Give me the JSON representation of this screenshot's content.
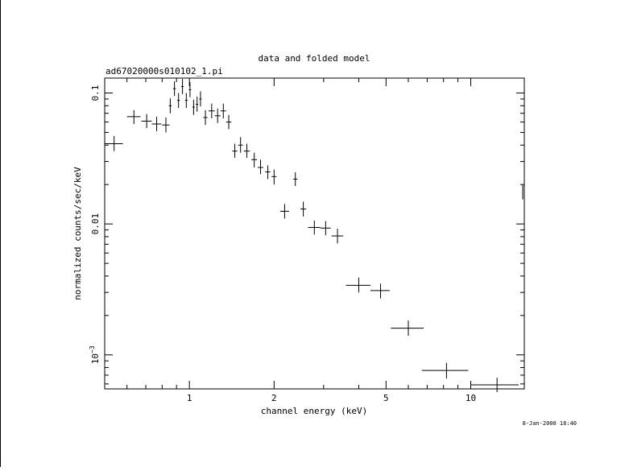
{
  "chart_data": {
    "type": "scatter",
    "title": "data and folded model",
    "subtitle": "ad67020000s010102_1.pi",
    "xlabel": "channel energy (keV)",
    "ylabel": "normalized counts/sec/keV",
    "xscale": "log",
    "yscale": "log",
    "xlim": [
      0.5,
      15.5
    ],
    "ylim": [
      0.00055,
      0.13
    ],
    "x_ticks": [
      {
        "value": 1,
        "label": "1"
      },
      {
        "value": 2,
        "label": "2"
      },
      {
        "value": 5,
        "label": "5"
      },
      {
        "value": 10,
        "label": "10"
      }
    ],
    "y_ticks": [
      {
        "value": 0.1,
        "label": "0.1"
      },
      {
        "value": 0.01,
        "label": "0.01"
      },
      {
        "value": 0.001,
        "label": "10",
        "sup": "−3"
      }
    ],
    "grid": false,
    "legend": "none",
    "timestamp": "8-Jan-2000 18:40",
    "series": [
      {
        "color": "#000000",
        "points": [
          {
            "x": 0.54,
            "xlo": 0.5,
            "xhi": 0.58,
            "y": 0.041,
            "ylo": 0.036,
            "yhi": 0.047
          },
          {
            "x": 0.635,
            "xlo": 0.6,
            "xhi": 0.67,
            "y": 0.066,
            "ylo": 0.058,
            "yhi": 0.074
          },
          {
            "x": 0.705,
            "xlo": 0.675,
            "xhi": 0.735,
            "y": 0.061,
            "ylo": 0.054,
            "yhi": 0.069
          },
          {
            "x": 0.765,
            "xlo": 0.735,
            "xhi": 0.795,
            "y": 0.058,
            "ylo": 0.051,
            "yhi": 0.066
          },
          {
            "x": 0.825,
            "xlo": 0.8,
            "xhi": 0.85,
            "y": 0.057,
            "ylo": 0.05,
            "yhi": 0.065
          },
          {
            "x": 0.855,
            "xlo": 0.845,
            "xhi": 0.865,
            "y": 0.08,
            "ylo": 0.07,
            "yhi": 0.091
          },
          {
            "x": 0.885,
            "xlo": 0.875,
            "xhi": 0.895,
            "y": 0.108,
            "ylo": 0.095,
            "yhi": 0.123
          },
          {
            "x": 0.915,
            "xlo": 0.905,
            "xhi": 0.925,
            "y": 0.088,
            "ylo": 0.077,
            "yhi": 0.1
          },
          {
            "x": 0.945,
            "xlo": 0.935,
            "xhi": 0.955,
            "y": 0.112,
            "ylo": 0.098,
            "yhi": 0.128
          },
          {
            "x": 0.975,
            "xlo": 0.965,
            "xhi": 0.985,
            "y": 0.088,
            "ylo": 0.077,
            "yhi": 0.1
          },
          {
            "x": 1.005,
            "xlo": 0.995,
            "xhi": 1.015,
            "y": 0.106,
            "ylo": 0.093,
            "yhi": 0.121
          },
          {
            "x": 1.035,
            "xlo": 1.025,
            "xhi": 1.045,
            "y": 0.078,
            "ylo": 0.068,
            "yhi": 0.089
          },
          {
            "x": 1.065,
            "xlo": 1.055,
            "xhi": 1.075,
            "y": 0.082,
            "ylo": 0.072,
            "yhi": 0.094
          },
          {
            "x": 1.095,
            "xlo": 1.085,
            "xhi": 1.105,
            "y": 0.09,
            "ylo": 0.079,
            "yhi": 0.103
          },
          {
            "x": 1.14,
            "xlo": 1.12,
            "xhi": 1.16,
            "y": 0.065,
            "ylo": 0.057,
            "yhi": 0.074
          },
          {
            "x": 1.2,
            "xlo": 1.17,
            "xhi": 1.23,
            "y": 0.073,
            "ylo": 0.064,
            "yhi": 0.083
          },
          {
            "x": 1.26,
            "xlo": 1.23,
            "xhi": 1.29,
            "y": 0.067,
            "ylo": 0.059,
            "yhi": 0.076
          },
          {
            "x": 1.32,
            "xlo": 1.29,
            "xhi": 1.35,
            "y": 0.073,
            "ylo": 0.064,
            "yhi": 0.083
          },
          {
            "x": 1.38,
            "xlo": 1.35,
            "xhi": 1.41,
            "y": 0.06,
            "ylo": 0.053,
            "yhi": 0.068
          },
          {
            "x": 1.45,
            "xlo": 1.42,
            "xhi": 1.48,
            "y": 0.036,
            "ylo": 0.032,
            "yhi": 0.041
          },
          {
            "x": 1.52,
            "xlo": 1.49,
            "xhi": 1.55,
            "y": 0.04,
            "ylo": 0.035,
            "yhi": 0.046
          },
          {
            "x": 1.6,
            "xlo": 1.56,
            "xhi": 1.64,
            "y": 0.036,
            "ylo": 0.032,
            "yhi": 0.041
          },
          {
            "x": 1.7,
            "xlo": 1.66,
            "xhi": 1.74,
            "y": 0.031,
            "ylo": 0.027,
            "yhi": 0.035
          },
          {
            "x": 1.79,
            "xlo": 1.75,
            "xhi": 1.83,
            "y": 0.027,
            "ylo": 0.024,
            "yhi": 0.031
          },
          {
            "x": 1.9,
            "xlo": 1.86,
            "xhi": 1.94,
            "y": 0.025,
            "ylo": 0.022,
            "yhi": 0.028
          },
          {
            "x": 2.0,
            "xlo": 1.96,
            "xhi": 2.04,
            "y": 0.023,
            "ylo": 0.02,
            "yhi": 0.026
          },
          {
            "x": 2.18,
            "xlo": 2.1,
            "xhi": 2.26,
            "y": 0.0125,
            "ylo": 0.011,
            "yhi": 0.0142
          },
          {
            "x": 2.38,
            "xlo": 2.34,
            "xhi": 2.42,
            "y": 0.022,
            "ylo": 0.0195,
            "yhi": 0.0248
          },
          {
            "x": 2.54,
            "xlo": 2.48,
            "xhi": 2.6,
            "y": 0.013,
            "ylo": 0.0114,
            "yhi": 0.0148
          },
          {
            "x": 2.78,
            "xlo": 2.64,
            "xhi": 2.92,
            "y": 0.0094,
            "ylo": 0.0083,
            "yhi": 0.0106
          },
          {
            "x": 3.05,
            "xlo": 2.92,
            "xhi": 3.18,
            "y": 0.0093,
            "ylo": 0.0082,
            "yhi": 0.0105
          },
          {
            "x": 3.36,
            "xlo": 3.2,
            "xhi": 3.52,
            "y": 0.0081,
            "ylo": 0.0071,
            "yhi": 0.0092
          },
          {
            "x": 4.0,
            "xlo": 3.6,
            "xhi": 4.4,
            "y": 0.0034,
            "ylo": 0.003,
            "yhi": 0.0039
          },
          {
            "x": 4.78,
            "xlo": 4.4,
            "xhi": 5.15,
            "y": 0.0031,
            "ylo": 0.0027,
            "yhi": 0.0035
          },
          {
            "x": 6.0,
            "xlo": 5.2,
            "xhi": 6.8,
            "y": 0.0016,
            "ylo": 0.0014,
            "yhi": 0.00183
          },
          {
            "x": 8.2,
            "xlo": 6.7,
            "xhi": 9.8,
            "y": 0.00076,
            "ylo": 0.00066,
            "yhi": 0.00087
          },
          {
            "x": 12.4,
            "xlo": 10.0,
            "xhi": 14.8,
            "y": 0.00059,
            "ylo": 0.00052,
            "yhi": 0.00067
          },
          {
            "x": 15.3,
            "xlo": 15.3,
            "xhi": 15.3,
            "y": 0.0175,
            "ylo": 0.0154,
            "yhi": 0.0198
          }
        ]
      }
    ]
  }
}
